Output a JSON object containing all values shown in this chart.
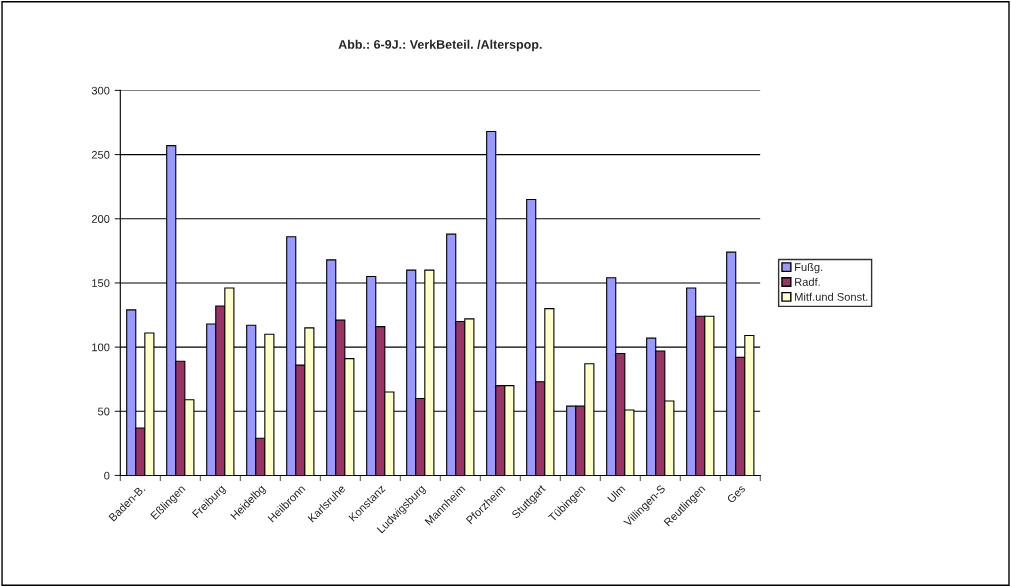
{
  "chart_data": {
    "type": "bar",
    "title": "Abb.: 6-9J.: VerkBeteil. /Alterspop.",
    "categories": [
      "Baden-B.",
      "Eßlingen",
      "Freiburg",
      "Heidelbg",
      "Heilbronn",
      "Karlsruhe",
      "Konstanz",
      "Ludwigsburg",
      "Mannheim",
      "Pforzheim",
      "Stuttgart",
      "Tübingen",
      "Ulm",
      "Villingen-S",
      "Reutlingen",
      "Ges"
    ],
    "series": [
      {
        "name": "Fußg.",
        "color": "#9999ff",
        "values": [
          129,
          257,
          118,
          117,
          186,
          168,
          155,
          160,
          188,
          268,
          215,
          54,
          154,
          107,
          146,
          174
        ]
      },
      {
        "name": "Radf.",
        "color": "#993366",
        "values": [
          37,
          89,
          132,
          29,
          86,
          121,
          116,
          60,
          120,
          70,
          73,
          54,
          95,
          97,
          124,
          92
        ]
      },
      {
        "name": "Mitf.und Sonst.",
        "color": "#ffffcc",
        "values": [
          111,
          59,
          146,
          110,
          115,
          91,
          65,
          160,
          122,
          70,
          130,
          87,
          51,
          58,
          124,
          109
        ]
      }
    ],
    "ylim": [
      0,
      300
    ],
    "yticks": [
      0,
      50,
      100,
      150,
      200,
      250,
      300
    ],
    "grid": "y",
    "legend": "right"
  }
}
